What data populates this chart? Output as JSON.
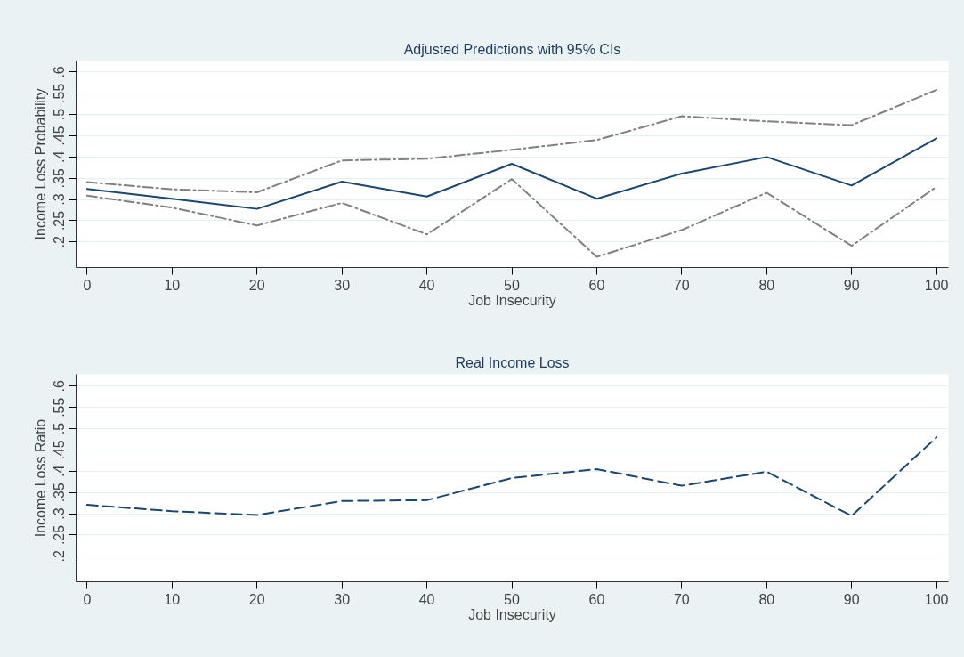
{
  "chart_data": [
    {
      "type": "line",
      "title": "Adjusted Predictions with 95% CIs",
      "xlabel": "Job Insecurity",
      "ylabel": "Income Loss Probability",
      "x": [
        0,
        10,
        20,
        30,
        40,
        50,
        60,
        70,
        80,
        90,
        100
      ],
      "xlim": [
        -1.3,
        101.4
      ],
      "xticks": [
        0,
        10,
        20,
        30,
        40,
        50,
        60,
        70,
        80,
        90,
        100
      ],
      "ylim": [
        0.14,
        0.626
      ],
      "yticks": [
        {
          "value": 0.2,
          "label": ".2"
        },
        {
          "value": 0.25,
          "label": ".25"
        },
        {
          "value": 0.3,
          "label": ".3"
        },
        {
          "value": 0.35,
          "label": ".35"
        },
        {
          "value": 0.4,
          "label": ".4"
        },
        {
          "value": 0.45,
          "label": ".45"
        },
        {
          "value": 0.5,
          "label": ".5"
        },
        {
          "value": 0.55,
          "label": ".55"
        },
        {
          "value": 0.6,
          "label": ".6"
        }
      ],
      "grid": "y",
      "series": [
        {
          "color": "#1a476f",
          "line_style": "solid",
          "values": [
            0.325,
            0.302,
            0.278,
            0.342,
            0.307,
            0.384,
            0.302,
            0.361,
            0.4,
            0.333,
            0.444
          ]
        },
        {
          "color": "#808080",
          "line_style": "dashdot",
          "values": [
            0.341,
            0.324,
            0.317,
            0.392,
            0.396,
            0.417,
            0.44,
            0.496,
            0.484,
            0.475,
            0.558
          ]
        },
        {
          "color": "#808080",
          "line_style": "dashdot",
          "values": [
            0.309,
            0.281,
            0.239,
            0.292,
            0.218,
            0.348,
            0.165,
            0.228,
            0.316,
            0.191,
            0.33
          ]
        }
      ]
    },
    {
      "type": "line",
      "title": "Real Income Loss",
      "xlabel": "Job Insecurity",
      "ylabel": "Income Loss Ratio",
      "x": [
        0,
        10,
        20,
        30,
        40,
        50,
        60,
        70,
        80,
        90,
        100
      ],
      "xlim": [
        -1.3,
        101.4
      ],
      "xticks": [
        0,
        10,
        20,
        30,
        40,
        50,
        60,
        70,
        80,
        90,
        100
      ],
      "ylim": [
        0.14,
        0.628
      ],
      "yticks": [
        {
          "value": 0.2,
          "label": ".2"
        },
        {
          "value": 0.25,
          "label": ".25"
        },
        {
          "value": 0.3,
          "label": ".3"
        },
        {
          "value": 0.35,
          "label": ".35"
        },
        {
          "value": 0.4,
          "label": ".4"
        },
        {
          "value": 0.45,
          "label": ".45"
        },
        {
          "value": 0.5,
          "label": ".5"
        },
        {
          "value": 0.55,
          "label": ".55"
        },
        {
          "value": 0.6,
          "label": ".6"
        }
      ],
      "grid": "y",
      "series": [
        {
          "color": "#1a476f",
          "line_style": "dashed",
          "values": [
            0.321,
            0.306,
            0.297,
            0.33,
            0.332,
            0.384,
            0.405,
            0.366,
            0.399,
            0.295,
            0.48
          ]
        }
      ]
    }
  ]
}
